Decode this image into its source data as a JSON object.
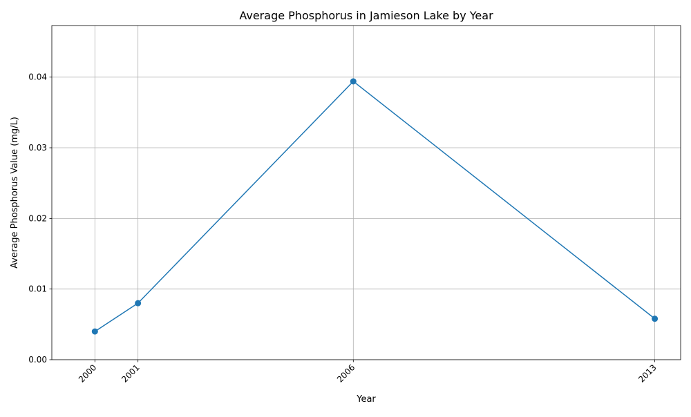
{
  "chart_data": {
    "type": "line",
    "title": "Average Phosphorus in Jamieson Lake by Year",
    "xlabel": "Year",
    "ylabel": "Average Phosphorus Value (mg/L)",
    "x": [
      2000,
      2001,
      2006,
      2013
    ],
    "x_tick_labels": [
      "2000",
      "2001",
      "2006",
      "2013"
    ],
    "series": [
      {
        "values": [
          0.004,
          0.008,
          0.0394,
          0.0058
        ],
        "color": "#1f77b4",
        "marker": "circle"
      }
    ],
    "xlim": [
      1999.0,
      2013.6
    ],
    "ylim": [
      0.0,
      0.0473
    ],
    "y_ticks": [
      0.0,
      0.01,
      0.02,
      0.03,
      0.04
    ],
    "y_tick_labels": [
      "0.00",
      "0.01",
      "0.02",
      "0.03",
      "0.04"
    ],
    "grid": true,
    "x_tick_rotation_deg": 45
  }
}
